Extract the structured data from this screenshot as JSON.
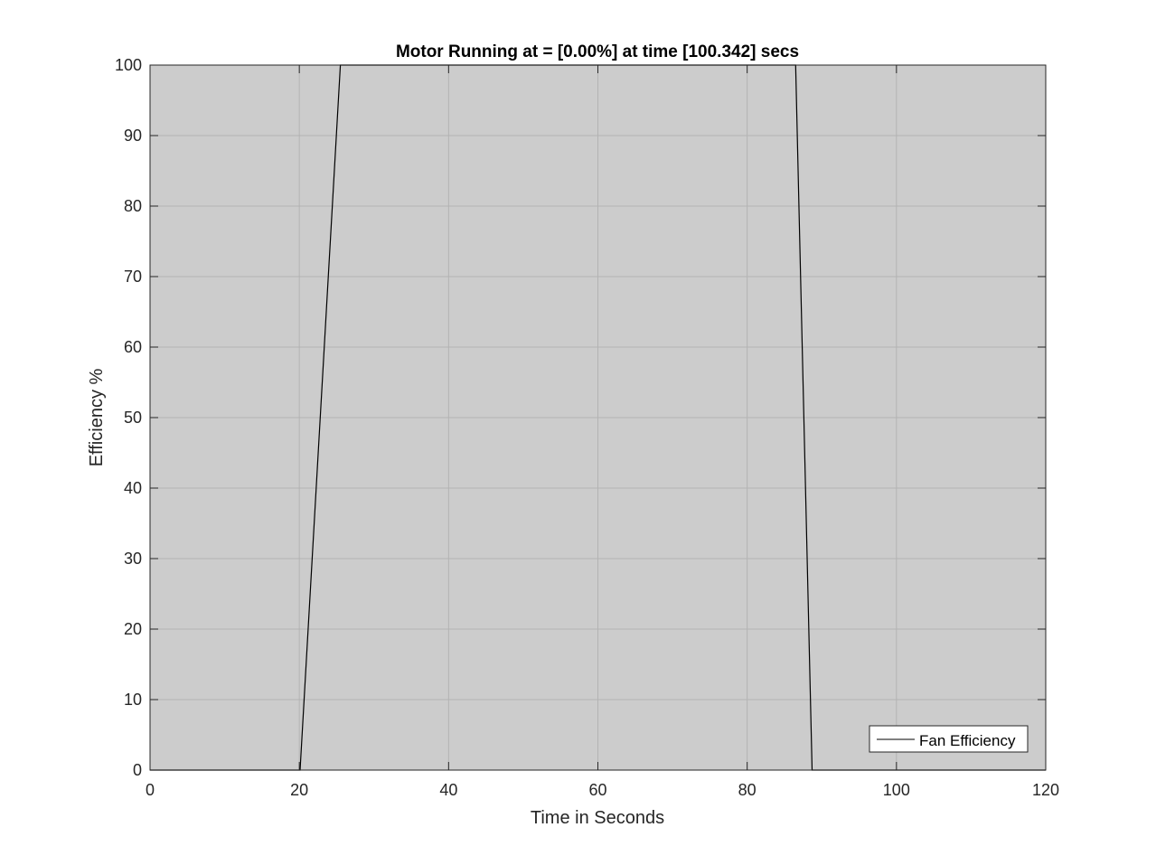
{
  "chart_data": {
    "type": "line",
    "title": "Motor Running at = [0.00%] at time [100.342] secs",
    "xlabel": "Time in Seconds",
    "ylabel": "Efficiency %",
    "xlim": [
      0,
      120
    ],
    "ylim": [
      0,
      100
    ],
    "xticks": [
      0,
      20,
      40,
      60,
      80,
      100,
      120
    ],
    "yticks": [
      0,
      10,
      20,
      30,
      40,
      50,
      60,
      70,
      80,
      90,
      100
    ],
    "grid": true,
    "legend_position": "bottom-right",
    "background_color": "#cccccc",
    "grid_color": "#b3b3b3",
    "series": [
      {
        "name": "Fan Efficiency",
        "color": "#000000",
        "x": [
          0,
          20.1,
          25.5,
          86.5,
          88.7,
          120
        ],
        "y": [
          0,
          0,
          100,
          100,
          0,
          0
        ]
      }
    ]
  }
}
